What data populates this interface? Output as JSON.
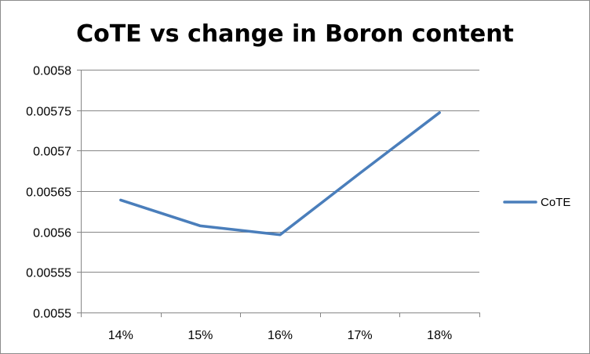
{
  "chart_data": {
    "type": "line",
    "title": "CoTE vs change in Boron content",
    "xlabel": "",
    "ylabel": "",
    "categories": [
      "14%",
      "15%",
      "16%",
      "17%",
      "18%"
    ],
    "series": [
      {
        "name": "CoTE",
        "values": [
          0.005639,
          0.005607,
          0.005596,
          0.005672,
          0.005747
        ],
        "color": "#4a7ebb"
      }
    ],
    "ylim": [
      0.0055,
      0.0058
    ],
    "yticks": [
      0.0055,
      0.00555,
      0.0056,
      0.00565,
      0.0057,
      0.00575,
      0.0058
    ],
    "ytick_labels": [
      "0.0055",
      "0.00555",
      "0.0056",
      "0.00565",
      "0.0057",
      "0.00575",
      "0.0058"
    ],
    "grid": "horizontal",
    "legend_position": "right",
    "gridline_color": "#868686",
    "axis_color": "#868686"
  }
}
